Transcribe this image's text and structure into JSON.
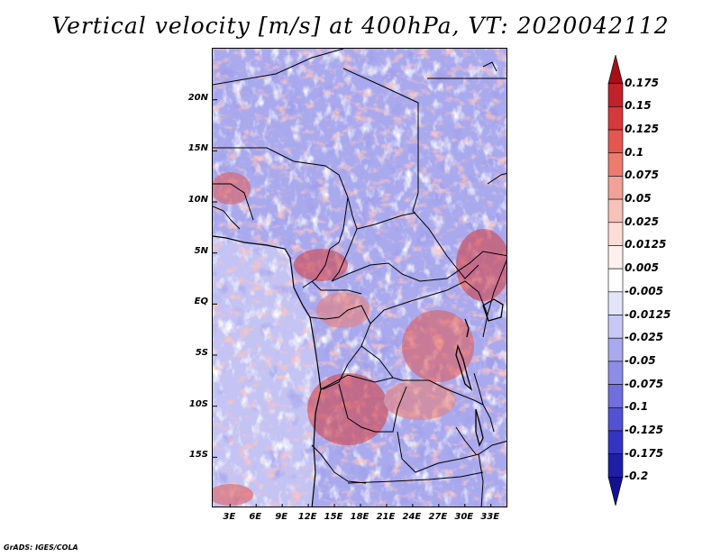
{
  "title": "Vertical velocity [m/s] at 400hPa, VT: 2020042112",
  "credit": "GrADS: IGES/COLA",
  "map": {
    "lat_labels": [
      "20N",
      "15N",
      "10N",
      "5N",
      "EQ",
      "5S",
      "10S",
      "15S"
    ],
    "lat_values": [
      20,
      15,
      10,
      5,
      0,
      -5,
      -10,
      -15
    ],
    "lon_labels": [
      "3E",
      "6E",
      "9E",
      "12E",
      "15E",
      "18E",
      "21E",
      "24E",
      "27E",
      "30E",
      "33E"
    ],
    "lon_values": [
      3,
      6,
      9,
      12,
      15,
      18,
      21,
      24,
      27,
      30,
      33
    ],
    "lat_range": [
      -20,
      25
    ],
    "lon_range": [
      1,
      35
    ]
  },
  "colorbar": {
    "labels": [
      "0.175",
      "0.15",
      "0.125",
      "0.1",
      "0.075",
      "0.05",
      "0.025",
      "0.0125",
      "0.005",
      "-0.005",
      "-0.0125",
      "-0.025",
      "-0.05",
      "-0.075",
      "-0.1",
      "-0.125",
      "-0.175",
      "-0.2"
    ],
    "colors": [
      "#a50f15",
      "#c0212a",
      "#d6393b",
      "#e35750",
      "#ec7c6f",
      "#f2a196",
      "#f7c2ba",
      "#fbdcd6",
      "#fff0ee",
      "#ffffff",
      "#e3e3fa",
      "#c8c8f4",
      "#a9a9ee",
      "#8d8ce6",
      "#706fdd",
      "#5352d2",
      "#3534c2",
      "#1f1ea6",
      "#13128c"
    ]
  },
  "colors": {
    "field_base": "#a9a9ee",
    "land_base": "#9d9deb",
    "ocean_base": "#c8c8f4",
    "border": "#000000"
  }
}
